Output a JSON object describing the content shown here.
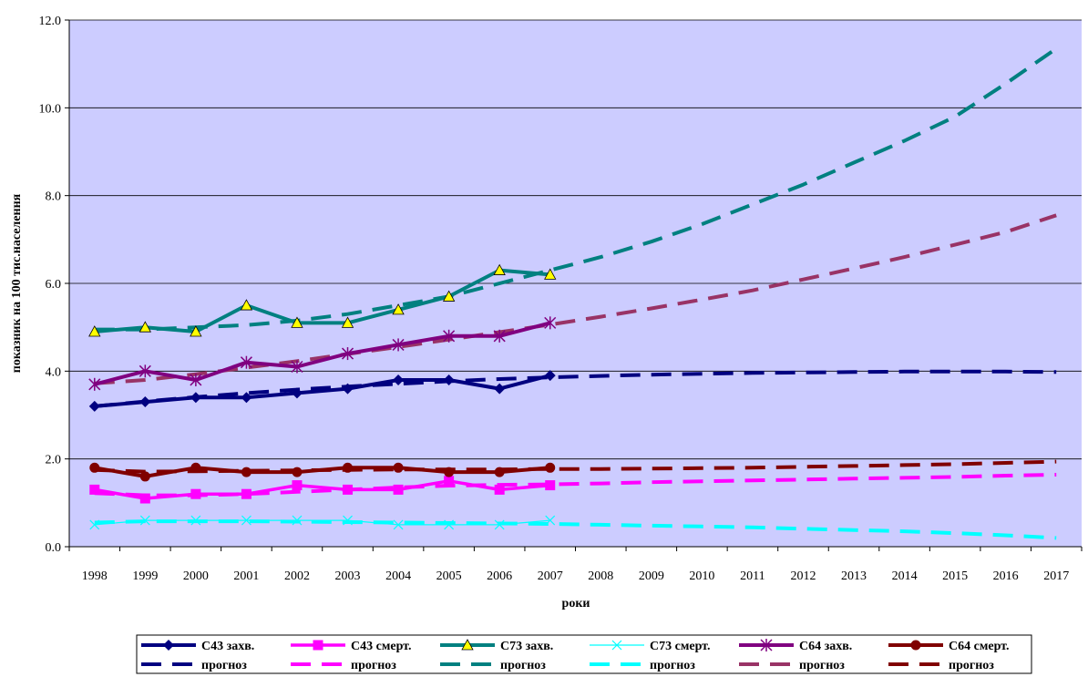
{
  "chart_data": {
    "type": "line",
    "xlabel": "роки",
    "ylabel": "показник на 100 тис.населення",
    "ylim": [
      0,
      12
    ],
    "yticks": [
      "0.0",
      "2.0",
      "4.0",
      "6.0",
      "8.0",
      "10.0",
      "12.0"
    ],
    "x": [
      "1998",
      "1999",
      "2000",
      "2001",
      "2002",
      "2003",
      "2004",
      "2005",
      "2006",
      "2007",
      "2008",
      "2009",
      "2010",
      "2011",
      "2012",
      "2013",
      "2014",
      "2015",
      "2016",
      "2017"
    ],
    "grid": true,
    "legend_position": "bottom",
    "background": "#ccccff",
    "series": [
      {
        "name": "С43 захв.",
        "color": "#000080",
        "marker": "diamond",
        "x": [
          "1998",
          "1999",
          "2000",
          "2001",
          "2002",
          "2003",
          "2004",
          "2005",
          "2006",
          "2007"
        ],
        "values": [
          3.2,
          3.3,
          3.4,
          3.4,
          3.5,
          3.6,
          3.8,
          3.8,
          3.6,
          3.9
        ]
      },
      {
        "name": "С43 смерт.",
        "color": "#ff00ff",
        "marker": "square",
        "x": [
          "1998",
          "1999",
          "2000",
          "2001",
          "2002",
          "2003",
          "2004",
          "2005",
          "2006",
          "2007"
        ],
        "values": [
          1.3,
          1.1,
          1.2,
          1.2,
          1.4,
          1.3,
          1.3,
          1.5,
          1.3,
          1.4
        ]
      },
      {
        "name": "С73 захв.",
        "color": "#008080",
        "marker": "triangle",
        "x": [
          "1998",
          "1999",
          "2000",
          "2001",
          "2002",
          "2003",
          "2004",
          "2005",
          "2006",
          "2007"
        ],
        "values": [
          4.9,
          5.0,
          4.9,
          5.5,
          5.1,
          5.1,
          5.4,
          5.7,
          6.3,
          6.2
        ]
      },
      {
        "name": "С73 смерт.",
        "color": "#00ffff",
        "marker": "x",
        "x": [
          "1998",
          "1999",
          "2000",
          "2001",
          "2002",
          "2003",
          "2004",
          "2005",
          "2006",
          "2007"
        ],
        "values": [
          0.5,
          0.6,
          0.6,
          0.6,
          0.6,
          0.6,
          0.5,
          0.5,
          0.5,
          0.6
        ]
      },
      {
        "name": "С64 захв.",
        "color": "#800080",
        "marker": "star",
        "x": [
          "1998",
          "1999",
          "2000",
          "2001",
          "2002",
          "2003",
          "2004",
          "2005",
          "2006",
          "2007"
        ],
        "values": [
          3.7,
          4.0,
          3.8,
          4.2,
          4.1,
          4.4,
          4.6,
          4.8,
          4.8,
          5.1
        ]
      },
      {
        "name": "С64 смерт.",
        "color": "#800000",
        "marker": "circle",
        "x": [
          "1998",
          "1999",
          "2000",
          "2001",
          "2002",
          "2003",
          "2004",
          "2005",
          "2006",
          "2007"
        ],
        "values": [
          1.8,
          1.6,
          1.8,
          1.7,
          1.7,
          1.8,
          1.8,
          1.7,
          1.7,
          1.8
        ]
      },
      {
        "name": "прогноз",
        "color": "#000080",
        "dashed": true,
        "x": [
          "1998",
          "1999",
          "2000",
          "2001",
          "2002",
          "2003",
          "2004",
          "2005",
          "2006",
          "2007",
          "2008",
          "2009",
          "2010",
          "2011",
          "2012",
          "2013",
          "2014",
          "2015",
          "2016",
          "2017"
        ],
        "values": [
          3.2,
          3.31,
          3.41,
          3.5,
          3.58,
          3.65,
          3.71,
          3.77,
          3.82,
          3.86,
          3.89,
          3.92,
          3.94,
          3.96,
          3.97,
          3.98,
          3.99,
          3.99,
          3.99,
          3.98
        ]
      },
      {
        "name": "прогноз",
        "color": "#ff00ff",
        "dashed": true,
        "x": [
          "1998",
          "1999",
          "2000",
          "2001",
          "2002",
          "2003",
          "2004",
          "2005",
          "2006",
          "2007",
          "2008",
          "2009",
          "2010",
          "2011",
          "2012",
          "2013",
          "2014",
          "2015",
          "2016",
          "2017"
        ],
        "values": [
          1.22,
          1.17,
          1.17,
          1.2,
          1.25,
          1.3,
          1.35,
          1.39,
          1.41,
          1.42,
          1.44,
          1.47,
          1.49,
          1.51,
          1.53,
          1.55,
          1.57,
          1.59,
          1.62,
          1.64
        ]
      },
      {
        "name": "прогноз",
        "color": "#008080",
        "dashed": true,
        "x": [
          "1998",
          "1999",
          "2000",
          "2001",
          "2002",
          "2003",
          "2004",
          "2005",
          "2006",
          "2007",
          "2008",
          "2009",
          "2010",
          "2011",
          "2012",
          "2013",
          "2014",
          "2015",
          "2016",
          "2017"
        ],
        "values": [
          4.95,
          4.95,
          5.0,
          5.05,
          5.15,
          5.3,
          5.5,
          5.7,
          6.0,
          6.3,
          6.6,
          6.95,
          7.35,
          7.8,
          8.25,
          8.75,
          9.25,
          9.8,
          10.55,
          11.35
        ]
      },
      {
        "name": "прогноз",
        "color": "#00ffff",
        "dashed": true,
        "x": [
          "1998",
          "1999",
          "2000",
          "2001",
          "2002",
          "2003",
          "2004",
          "2005",
          "2006",
          "2007",
          "2008",
          "2009",
          "2010",
          "2011",
          "2012",
          "2013",
          "2014",
          "2015",
          "2016",
          "2017"
        ],
        "values": [
          0.55,
          0.58,
          0.58,
          0.58,
          0.57,
          0.56,
          0.55,
          0.54,
          0.53,
          0.52,
          0.5,
          0.48,
          0.46,
          0.44,
          0.41,
          0.38,
          0.35,
          0.31,
          0.26,
          0.2
        ]
      },
      {
        "name": "прогноз",
        "color": "#993366",
        "dashed": true,
        "x": [
          "1998",
          "1999",
          "2000",
          "2001",
          "2002",
          "2003",
          "2004",
          "2005",
          "2006",
          "2007",
          "2008",
          "2009",
          "2010",
          "2011",
          "2012",
          "2013",
          "2014",
          "2015",
          "2016",
          "2017"
        ],
        "values": [
          3.72,
          3.8,
          3.93,
          4.08,
          4.23,
          4.39,
          4.55,
          4.72,
          4.89,
          5.06,
          5.24,
          5.43,
          5.63,
          5.84,
          6.09,
          6.34,
          6.6,
          6.88,
          7.17,
          7.55
        ]
      },
      {
        "name": "прогноз",
        "color": "#800000",
        "dashed": true,
        "x": [
          "1998",
          "1999",
          "2000",
          "2001",
          "2002",
          "2003",
          "2004",
          "2005",
          "2006",
          "2007",
          "2008",
          "2009",
          "2010",
          "2011",
          "2012",
          "2013",
          "2014",
          "2015",
          "2016",
          "2017"
        ],
        "values": [
          1.75,
          1.71,
          1.72,
          1.73,
          1.74,
          1.75,
          1.76,
          1.76,
          1.76,
          1.77,
          1.77,
          1.78,
          1.79,
          1.8,
          1.82,
          1.84,
          1.86,
          1.88,
          1.91,
          1.94
        ]
      }
    ]
  }
}
